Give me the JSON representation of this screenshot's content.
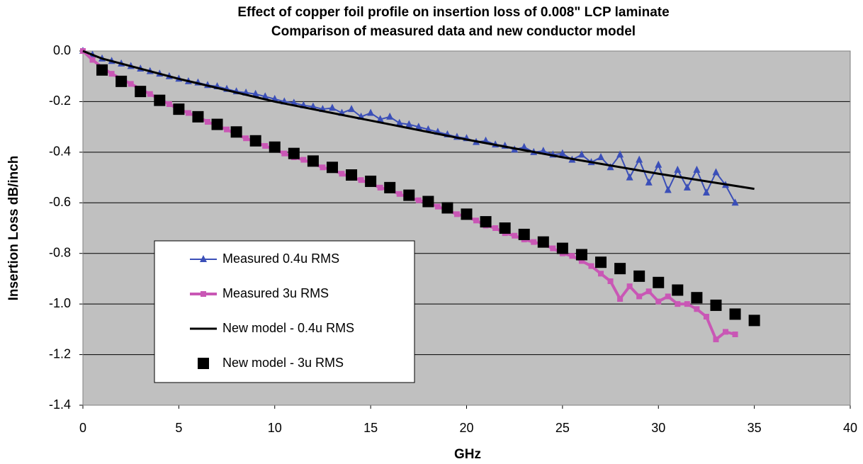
{
  "chart_data": {
    "type": "line",
    "title": "Effect of copper foil profile on insertion loss of 0.008\" LCP laminate",
    "subtitle": "Comparison of measured data and new conductor model",
    "x_label": "GHz",
    "y_label": "Insertion Loss dB/inch",
    "xlim": [
      0,
      40
    ],
    "xticks": [
      0,
      5,
      10,
      15,
      20,
      25,
      30,
      35,
      40
    ],
    "ylim": [
      -1.4,
      0
    ],
    "yticks": [
      {
        "value": 0,
        "label": "0.0"
      },
      -0.2,
      -0.4,
      -0.6,
      -0.8,
      {
        "value": -1,
        "label": "-1.0"
      },
      -1.2,
      -1.4
    ],
    "grid": true,
    "series": [
      {
        "name": "Measured 0.4u RMS",
        "color": "#3b4fb8",
        "marker": "triangle",
        "line": true,
        "x": [
          0,
          0.5,
          1,
          1.5,
          2,
          2.5,
          3,
          3.5,
          4,
          4.5,
          5,
          5.5,
          6,
          6.5,
          7,
          7.5,
          8,
          8.5,
          9,
          9.5,
          10,
          10.5,
          11,
          11.5,
          12,
          12.5,
          13,
          13.5,
          14,
          14.5,
          15,
          15.5,
          16,
          16.5,
          17,
          17.5,
          18,
          18.5,
          19,
          19.5,
          20,
          20.5,
          21,
          21.5,
          22,
          22.5,
          23,
          23.5,
          24,
          24.5,
          25,
          25.5,
          26,
          26.5,
          27,
          27.5,
          28,
          28.5,
          29,
          29.5,
          30,
          30.5,
          31,
          31.5,
          32,
          32.5,
          33,
          33.5,
          34
        ],
        "values": [
          0,
          -0.015,
          -0.03,
          -0.04,
          -0.05,
          -0.06,
          -0.07,
          -0.08,
          -0.09,
          -0.1,
          -0.11,
          -0.12,
          -0.125,
          -0.135,
          -0.14,
          -0.15,
          -0.16,
          -0.165,
          -0.17,
          -0.18,
          -0.19,
          -0.2,
          -0.205,
          -0.215,
          -0.22,
          -0.23,
          -0.225,
          -0.245,
          -0.23,
          -0.26,
          -0.245,
          -0.27,
          -0.26,
          -0.285,
          -0.29,
          -0.3,
          -0.31,
          -0.32,
          -0.33,
          -0.34,
          -0.345,
          -0.36,
          -0.355,
          -0.37,
          -0.375,
          -0.39,
          -0.38,
          -0.4,
          -0.395,
          -0.41,
          -0.405,
          -0.43,
          -0.41,
          -0.44,
          -0.42,
          -0.46,
          -0.41,
          -0.5,
          -0.43,
          -0.52,
          -0.45,
          -0.55,
          -0.47,
          -0.54,
          -0.47,
          -0.56,
          -0.48,
          -0.53,
          -0.6
        ]
      },
      {
        "name": "Measured 3u RMS",
        "color": "#c957b5",
        "marker": "square",
        "line": true,
        "x": [
          0,
          0.5,
          1,
          1.5,
          2,
          2.5,
          3,
          3.5,
          4,
          4.5,
          5,
          5.5,
          6,
          6.5,
          7,
          7.5,
          8,
          8.5,
          9,
          9.5,
          10,
          10.5,
          11,
          11.5,
          12,
          12.5,
          13,
          13.5,
          14,
          14.5,
          15,
          15.5,
          16,
          16.5,
          17,
          17.5,
          18,
          18.5,
          19,
          19.5,
          20,
          20.5,
          21,
          21.5,
          22,
          22.5,
          23,
          23.5,
          24,
          24.5,
          25,
          25.5,
          26,
          26.5,
          27,
          27.5,
          28,
          28.5,
          29,
          29.5,
          30,
          30.5,
          31,
          31.5,
          32,
          32.5,
          33,
          33.5,
          34
        ],
        "values": [
          0,
          -0.035,
          -0.065,
          -0.09,
          -0.11,
          -0.13,
          -0.15,
          -0.17,
          -0.19,
          -0.21,
          -0.23,
          -0.245,
          -0.26,
          -0.28,
          -0.295,
          -0.31,
          -0.33,
          -0.345,
          -0.36,
          -0.375,
          -0.39,
          -0.405,
          -0.42,
          -0.43,
          -0.445,
          -0.46,
          -0.47,
          -0.485,
          -0.5,
          -0.51,
          -0.525,
          -0.54,
          -0.55,
          -0.565,
          -0.58,
          -0.59,
          -0.6,
          -0.615,
          -0.63,
          -0.645,
          -0.655,
          -0.67,
          -0.69,
          -0.7,
          -0.72,
          -0.73,
          -0.745,
          -0.755,
          -0.765,
          -0.78,
          -0.8,
          -0.81,
          -0.83,
          -0.85,
          -0.88,
          -0.91,
          -0.98,
          -0.93,
          -0.97,
          -0.95,
          -0.99,
          -0.97,
          -1.0,
          -1.0,
          -1.02,
          -1.05,
          -1.14,
          -1.11,
          -1.12
        ]
      },
      {
        "name": "New model - 0.4u RMS",
        "color": "#000000",
        "marker": "none",
        "line": true,
        "x": [
          0,
          1,
          2,
          5,
          10,
          15,
          20,
          25,
          30,
          35
        ],
        "values": [
          0,
          -0.03,
          -0.05,
          -0.11,
          -0.2,
          -0.275,
          -0.35,
          -0.42,
          -0.485,
          -0.545
        ]
      },
      {
        "name": "New model - 3u RMS",
        "color": "#000000",
        "marker": "bigsquare",
        "line": false,
        "x": [
          1,
          2,
          3,
          4,
          5,
          6,
          7,
          8,
          9,
          10,
          11,
          12,
          13,
          14,
          15,
          16,
          17,
          18,
          19,
          20,
          21,
          22,
          23,
          24,
          25,
          26,
          27,
          28,
          29,
          30,
          31,
          32,
          33,
          34,
          35
        ],
        "values": [
          -0.075,
          -0.12,
          -0.16,
          -0.195,
          -0.23,
          -0.26,
          -0.29,
          -0.32,
          -0.355,
          -0.38,
          -0.405,
          -0.435,
          -0.46,
          -0.49,
          -0.515,
          -0.54,
          -0.57,
          -0.595,
          -0.62,
          -0.645,
          -0.675,
          -0.7,
          -0.725,
          -0.755,
          -0.78,
          -0.805,
          -0.835,
          -0.86,
          -0.89,
          -0.915,
          -0.945,
          -0.975,
          -1.005,
          -1.04,
          -1.065
        ]
      }
    ]
  }
}
